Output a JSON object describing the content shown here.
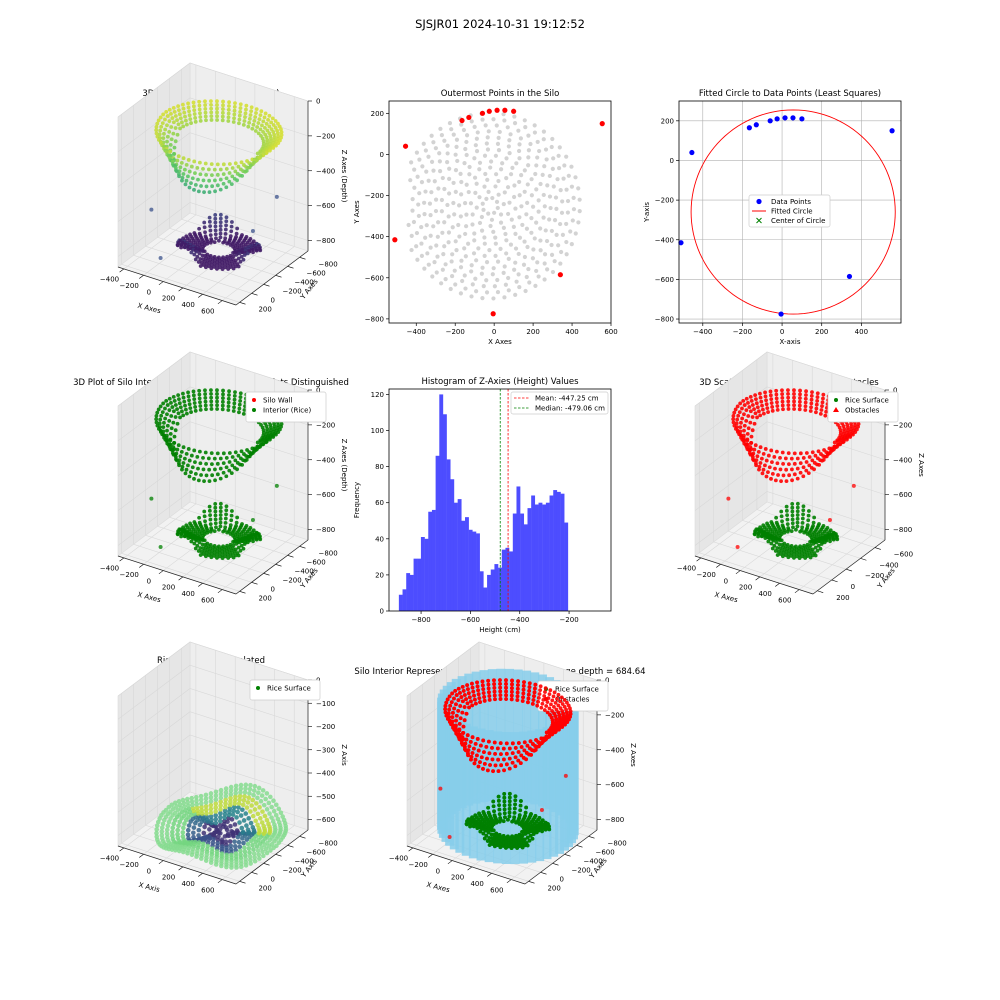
{
  "suptitle": "SJSJR01 2024-10-31 19:12:52",
  "chart_data": [
    {
      "id": "p1",
      "type": "scatter",
      "title": "3D Plot of Silo Interior(row data)",
      "xlabel": "X Axes",
      "ylabel": "Y Axes",
      "zlabel": "Z Axes (Depth)",
      "xticks": [
        "-400",
        "-200",
        "0",
        "200",
        "400",
        "600"
      ],
      "yticks": [
        "200",
        "0",
        "-200",
        "-400",
        "-600",
        "-800"
      ],
      "zticks": [
        "0",
        "-200",
        "-400",
        "-600",
        "-800"
      ],
      "colormap": "viridis",
      "legend": null
    },
    {
      "id": "p2",
      "type": "scatter",
      "title": "Outermost Points in the Silo",
      "xlabel": "X Axes",
      "ylabel": "Y Axes",
      "xlim": [
        -540,
        600
      ],
      "ylim": [
        -820,
        260
      ],
      "xticks": [
        -400,
        -200,
        0,
        200,
        400,
        600
      ],
      "yticks": [
        200,
        0,
        -200,
        -400,
        -600,
        -800
      ],
      "grid": false,
      "series": [
        {
          "color": "#d3d3d3",
          "description": "All points (light gray), concentric rings, approx center (-20,-250)"
        },
        {
          "color": "#ff0000",
          "x": [
            -510,
            -455,
            -165,
            -130,
            -60,
            -25,
            15,
            55,
            100,
            340,
            555,
            -5
          ],
          "y": [
            -415,
            40,
            165,
            180,
            200,
            210,
            215,
            215,
            210,
            -585,
            150,
            -775
          ]
        }
      ]
    },
    {
      "id": "p3",
      "type": "scatter",
      "title": "Fitted Circle to Data Points (Least Squares)",
      "xlabel": "X-axis",
      "ylabel": "Y-axis",
      "xlim": [
        -520,
        600
      ],
      "ylim": [
        -820,
        300
      ],
      "xticks": [
        -400,
        -200,
        0,
        200,
        400
      ],
      "yticks": [
        200,
        0,
        -200,
        -400,
        -600,
        -800
      ],
      "grid": true,
      "legend_position": "center",
      "legend": [
        "Data Points",
        "Fitted Circle",
        "Center of Circle"
      ],
      "series": [
        {
          "name": "Data Points",
          "color": "#0000ff",
          "x": [
            -510,
            -455,
            -165,
            -130,
            -60,
            -25,
            15,
            55,
            100,
            340,
            555,
            -5
          ],
          "y": [
            -415,
            40,
            165,
            180,
            200,
            210,
            215,
            215,
            210,
            -585,
            150,
            -775
          ]
        },
        {
          "name": "Fitted Circle",
          "color": "#ff0000",
          "center": [
            56,
            -260
          ],
          "radius": 515
        },
        {
          "name": "Center of Circle",
          "color": "#008000",
          "x": [
            56
          ],
          "y": [
            -260
          ]
        }
      ]
    },
    {
      "id": "p4",
      "type": "scatter",
      "title": "3D Plot of Silo Interior with Wall and Interior Points Distinguished",
      "xlabel": "X Axes",
      "ylabel": "Y Axes",
      "zlabel": "Z Axes (Depth)",
      "xticks": [
        "-400",
        "-200",
        "0",
        "200",
        "400",
        "600"
      ],
      "yticks": [
        "200",
        "0",
        "-200",
        "-400",
        "-600",
        "-800"
      ],
      "zticks": [
        "0",
        "-200",
        "-400",
        "-600",
        "-800"
      ],
      "legend_position": "top-right",
      "legend": [
        "Silo Wall",
        "Interior (Rice)"
      ],
      "colors": {
        "Silo Wall": "#ff0000",
        "Interior (Rice)": "#008000"
      }
    },
    {
      "id": "p5",
      "type": "bar",
      "title": "Histogram of Z-Axies (Height) Values",
      "xlabel": "Height (cm)",
      "ylabel": "Frequency",
      "xlim": [
        -930,
        -30
      ],
      "ylim": [
        0,
        123
      ],
      "xticks": [
        -800,
        -600,
        -400,
        -200
      ],
      "yticks": [
        0,
        20,
        40,
        60,
        80,
        100,
        120
      ],
      "bin_start": -890,
      "bin_width": 14.9,
      "values": [
        9,
        12,
        21,
        20,
        29,
        29,
        41,
        40,
        55,
        56,
        86,
        120,
        109,
        84,
        73,
        60,
        62,
        50,
        52,
        45,
        44,
        43,
        22,
        13,
        20,
        23,
        26,
        24,
        34,
        35,
        33,
        54,
        69,
        54,
        48,
        57,
        64,
        59,
        60,
        59,
        60,
        64,
        67,
        66,
        65,
        49
      ],
      "bar_color": "#4d4dff",
      "lines": [
        {
          "label": "Mean: -447.25 cm",
          "value": -447.25,
          "color": "#ff0000"
        },
        {
          "label": "Median: -479.06 cm",
          "value": -479.06,
          "color": "#008000"
        }
      ],
      "legend_position": "top-right"
    },
    {
      "id": "p6",
      "type": "scatter",
      "title": "3D Scatter Plot: Rice Surface vs Obstacles",
      "xlabel": "X Axes",
      "ylabel": "Y Axes",
      "zlabel": "Z Axes",
      "xticks": [
        "-400",
        "-200",
        "0",
        "200",
        "400",
        "600"
      ],
      "yticks": [
        "200",
        "0",
        "-200",
        "-400",
        "-600"
      ],
      "zticks": [
        "0",
        "-200",
        "-400",
        "-600",
        "-800"
      ],
      "legend_position": "top-right",
      "legend": [
        "Rice Surface",
        "Obstacles"
      ],
      "colors": {
        "Rice Surface": "#008000",
        "Obstacles": "#ff0000"
      }
    },
    {
      "id": "p7",
      "type": "area",
      "title": "Rice Surface Interpolated",
      "subtitle": "depth = 684.64",
      "xlabel": "X Axis",
      "ylabel": "Y Axis",
      "zlabel": "Z Axis",
      "xticks": [
        "-400",
        "-200",
        "0",
        "200",
        "400",
        "600"
      ],
      "yticks": [
        "200",
        "0",
        "-200",
        "-400",
        "-600",
        "-800"
      ],
      "zticks": [
        "0",
        "-100",
        "-200",
        "-300",
        "-400",
        "-500",
        "-600"
      ],
      "legend_position": "top-right",
      "legend": [
        "Rice Surface"
      ],
      "colors": {
        "Rice Surface": "#008000"
      }
    },
    {
      "id": "p8",
      "type": "scatter",
      "title": "Silo Interior Representation using weighted average depth = 684.64",
      "xlabel": "X Axes",
      "ylabel": "Y Axes",
      "zlabel": "Z Axes",
      "xticks": [
        "-400",
        "-200",
        "0",
        "200",
        "400",
        "600"
      ],
      "yticks": [
        "200",
        "0",
        "-200",
        "-400",
        "-600",
        "-800"
      ],
      "zticks": [
        "0",
        "-200",
        "-400",
        "-600",
        "-800"
      ],
      "legend_position": "top-right",
      "legend": [
        "Rice Surface",
        "Obstacles"
      ],
      "colors": {
        "Rice Surface": "#008000",
        "Obstacles": "#ff0000",
        "Silo": "#87ceeb"
      }
    }
  ]
}
